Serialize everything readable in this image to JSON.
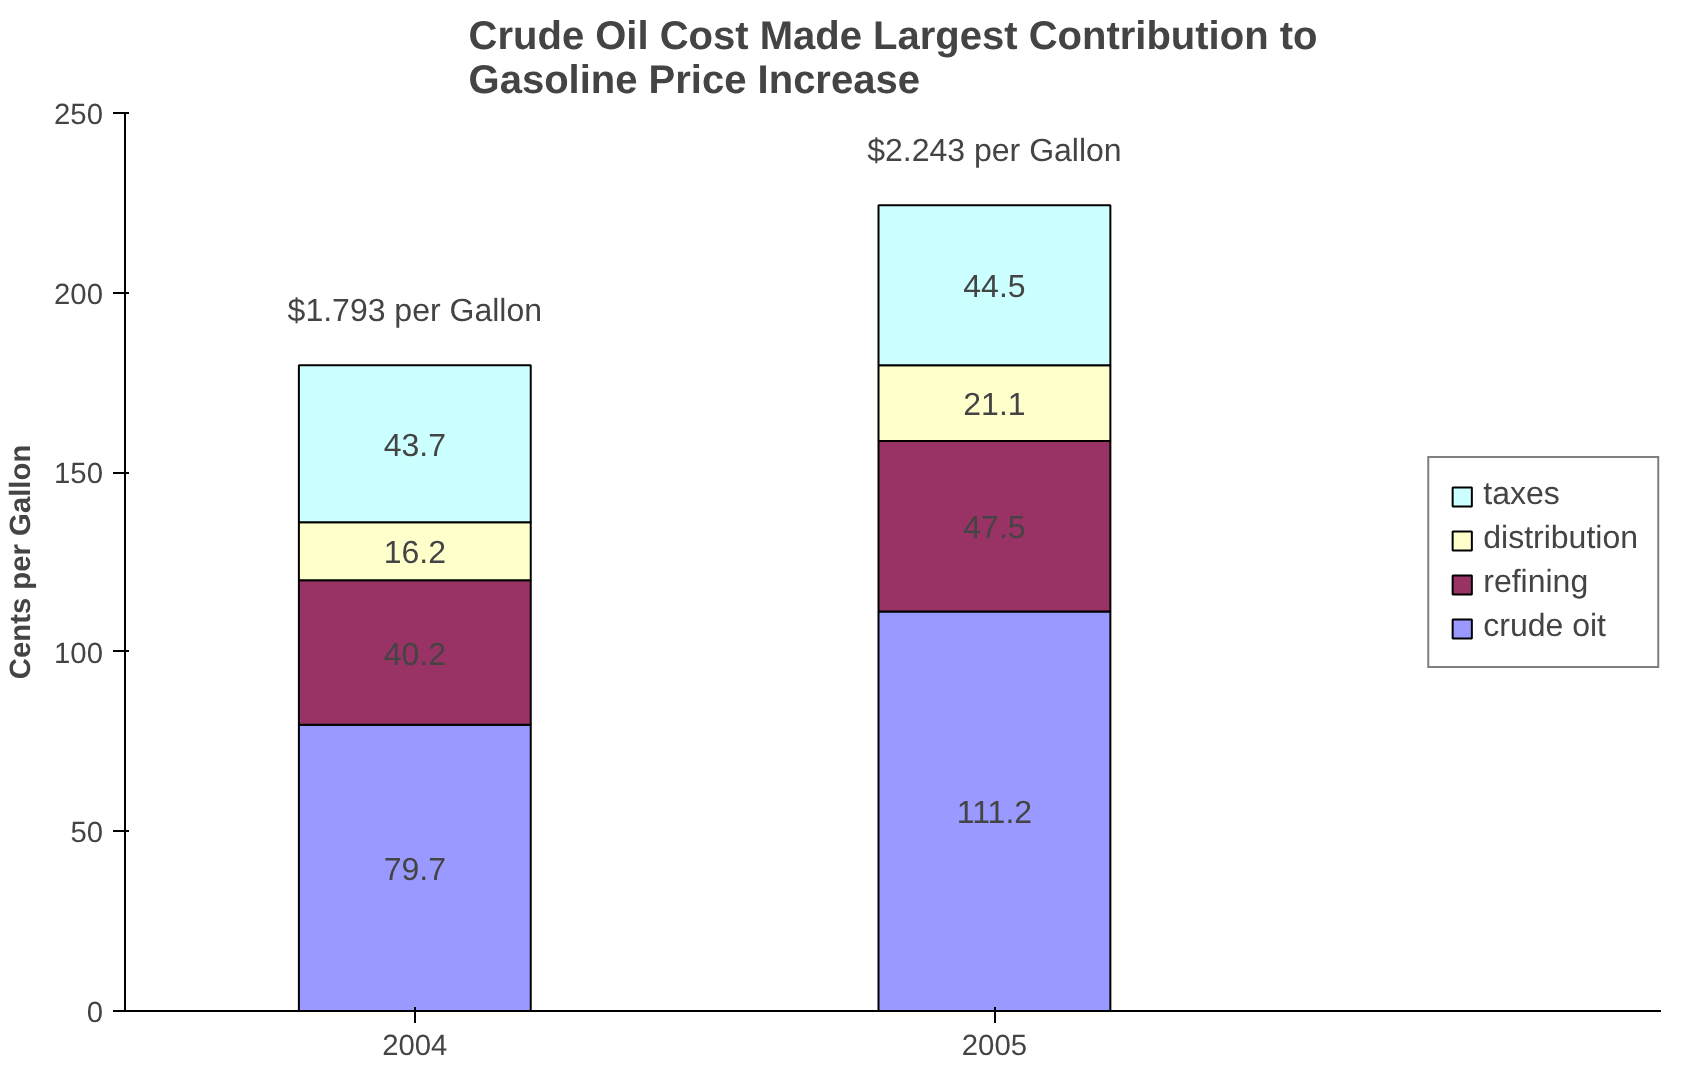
{
  "chart_data": {
    "type": "bar",
    "title": "Crude Oil Cost Made Largest Contribution to\nGasoline Price Increase",
    "ylabel": "Cents per Gallon",
    "categories": [
      "2004",
      "2005"
    ],
    "stacked": true,
    "data_labels": true,
    "series": [
      {
        "name": "crude oit",
        "color": "#9999ff",
        "values": [
          79.7,
          111.2
        ]
      },
      {
        "name": "refining",
        "color": "#993366",
        "values": [
          40.2,
          47.5
        ]
      },
      {
        "name": "distribution",
        "color": "#ffffcc",
        "values": [
          16.2,
          21.1
        ]
      },
      {
        "name": "taxes",
        "color": "#ccffff",
        "values": [
          43.7,
          44.5
        ]
      }
    ],
    "annotations": [
      {
        "text": "$1.793 per Gallon",
        "x": "2004",
        "y": 179.8
      },
      {
        "text": "$2.243 per Gallon",
        "x": "2005",
        "y": 224.3
      }
    ],
    "ylim": [
      0,
      250
    ],
    "yticks": [
      0,
      50,
      100,
      150,
      200,
      250
    ],
    "grid": false,
    "legend": "right"
  }
}
